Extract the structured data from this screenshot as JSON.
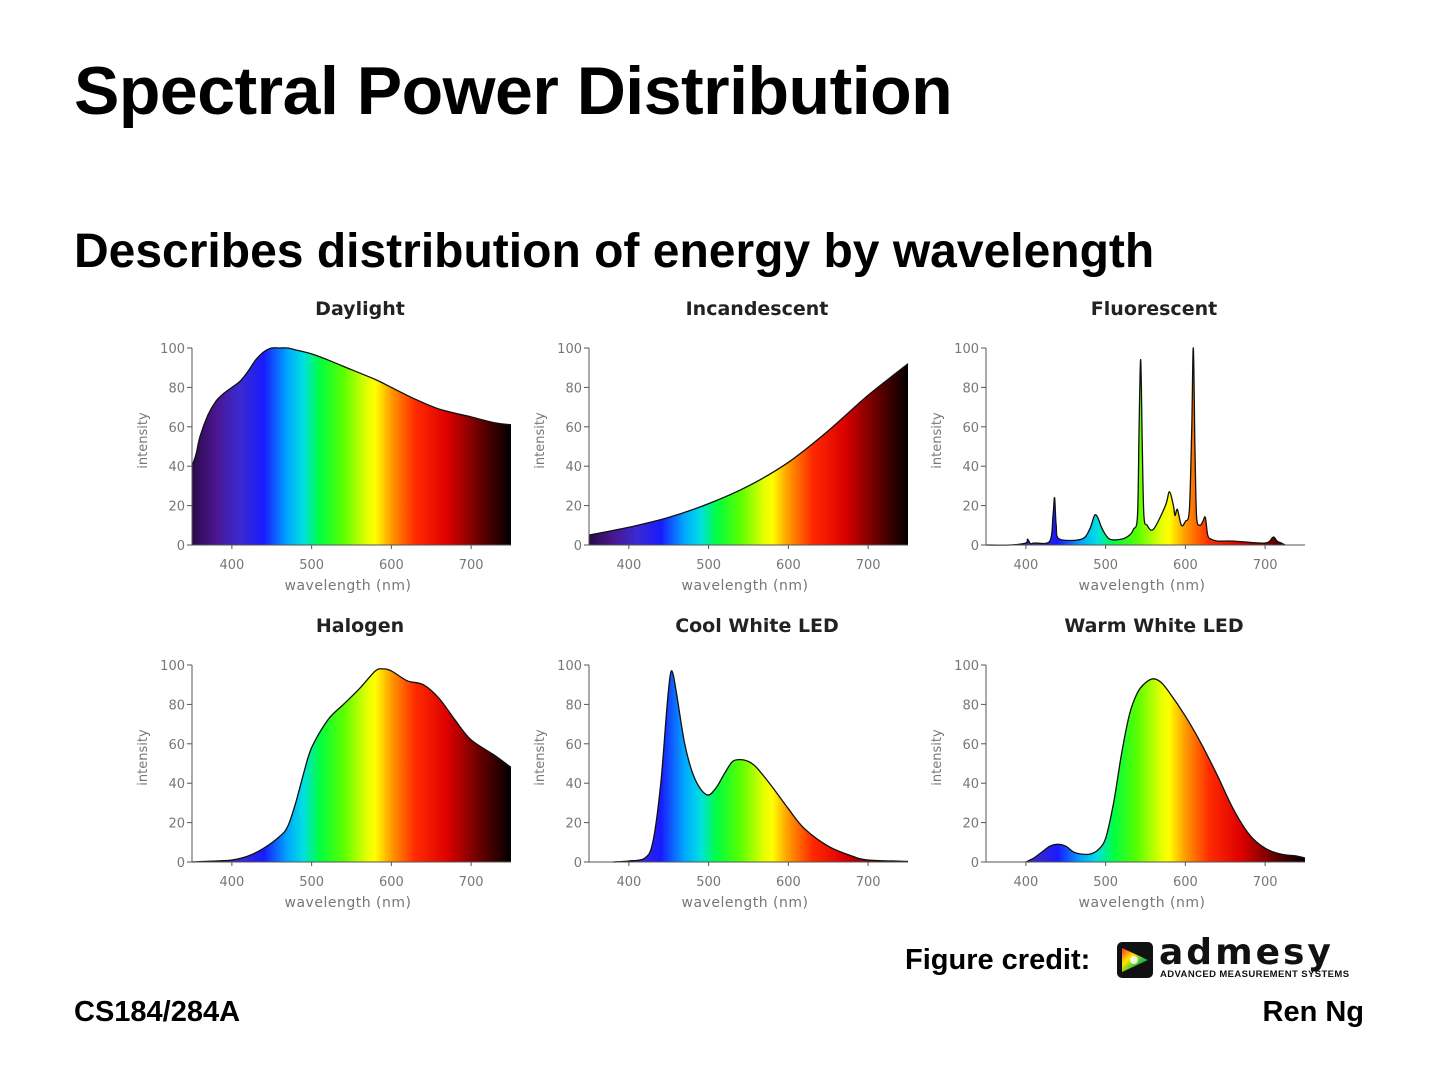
{
  "slide": {
    "title": "Spectral Power Distribution",
    "subtitle": "Describes distribution of energy by wavelength",
    "credit_label": "Figure credit:",
    "logo_word": "admesy",
    "logo_tagline": "ADVANCED MEASUREMENT SYSTEMS",
    "footer_left": "CS184/284A",
    "footer_right": "Ren Ng"
  },
  "chart_data": [
    {
      "type": "area",
      "title": "Daylight",
      "xlabel": "wavelength (nm)",
      "ylabel": "intensity",
      "xlim": [
        350,
        750
      ],
      "ylim": [
        0,
        100
      ],
      "xticks": [
        400,
        500,
        600,
        700
      ],
      "yticks": [
        0,
        20,
        40,
        60,
        80,
        100
      ],
      "x": [
        350,
        355,
        360,
        370,
        380,
        390,
        400,
        410,
        420,
        430,
        440,
        450,
        460,
        470,
        480,
        500,
        520,
        550,
        580,
        600,
        630,
        660,
        700,
        730,
        750
      ],
      "y": [
        40,
        46,
        55,
        66,
        73,
        77,
        80,
        83,
        88,
        94,
        98,
        100,
        100,
        100,
        99,
        97,
        94,
        89,
        84,
        80,
        74,
        69,
        65,
        62,
        61
      ]
    },
    {
      "type": "area",
      "title": "Incandescent",
      "xlabel": "wavelength (nm)",
      "ylabel": "intensity",
      "xlim": [
        350,
        750
      ],
      "ylim": [
        0,
        100
      ],
      "xticks": [
        400,
        500,
        600,
        700
      ],
      "yticks": [
        0,
        20,
        40,
        60,
        80,
        100
      ],
      "x": [
        350,
        400,
        450,
        500,
        550,
        600,
        650,
        700,
        750
      ],
      "y": [
        5,
        9,
        14,
        21,
        30,
        42,
        58,
        76,
        92
      ]
    },
    {
      "type": "area",
      "title": "Fluorescent",
      "xlabel": "wavelength (nm)",
      "ylabel": "intensity",
      "xlim": [
        350,
        750
      ],
      "ylim": [
        0,
        100
      ],
      "xticks": [
        400,
        500,
        600,
        700
      ],
      "yticks": [
        0,
        20,
        40,
        60,
        80,
        100
      ],
      "x": [
        350,
        380,
        400,
        402,
        405,
        407,
        410,
        430,
        434,
        436,
        438,
        442,
        470,
        480,
        486,
        490,
        496,
        505,
        520,
        530,
        535,
        540,
        542,
        544,
        546,
        548,
        552,
        560,
        575,
        580,
        585,
        587,
        590,
        595,
        600,
        605,
        608,
        610,
        612,
        614,
        618,
        622,
        625,
        628,
        632,
        640,
        660,
        700,
        710,
        715,
        720,
        725
      ],
      "y": [
        0,
        0,
        1,
        3,
        1,
        0.5,
        1,
        2,
        15,
        24,
        10,
        3,
        3,
        8,
        15,
        14,
        8,
        3,
        3,
        5,
        8,
        15,
        60,
        94,
        50,
        15,
        10,
        8,
        20,
        27,
        20,
        15,
        18,
        10,
        12,
        18,
        60,
        100,
        50,
        15,
        10,
        12,
        14,
        5,
        3,
        2,
        2,
        1,
        4,
        2,
        1,
        0
      ]
    },
    {
      "type": "area",
      "title": "Halogen",
      "xlabel": "wavelength (nm)",
      "ylabel": "intensity",
      "xlim": [
        350,
        750
      ],
      "ylim": [
        0,
        100
      ],
      "xticks": [
        400,
        500,
        600,
        700
      ],
      "yticks": [
        0,
        20,
        40,
        60,
        80,
        100
      ],
      "x": [
        350,
        380,
        400,
        420,
        440,
        460,
        470,
        480,
        490,
        500,
        520,
        540,
        560,
        580,
        590,
        600,
        620,
        640,
        660,
        680,
        700,
        730,
        750
      ],
      "y": [
        0,
        0.5,
        1,
        3,
        7,
        13,
        18,
        30,
        45,
        58,
        72,
        80,
        88,
        97,
        98,
        97,
        92,
        90,
        83,
        72,
        62,
        54,
        48
      ]
    },
    {
      "type": "area",
      "title": "Cool White LED",
      "xlabel": "wavelength (nm)",
      "ylabel": "intensity",
      "xlim": [
        350,
        750
      ],
      "ylim": [
        0,
        100
      ],
      "xticks": [
        400,
        500,
        600,
        700
      ],
      "yticks": [
        0,
        20,
        40,
        60,
        80,
        100
      ],
      "x": [
        380,
        400,
        420,
        430,
        440,
        448,
        452,
        455,
        460,
        470,
        480,
        490,
        500,
        510,
        520,
        530,
        540,
        550,
        560,
        580,
        600,
        620,
        650,
        680,
        700,
        750
      ],
      "y": [
        0,
        0.5,
        2,
        10,
        40,
        80,
        95,
        96,
        85,
        60,
        45,
        37,
        34,
        38,
        45,
        51,
        52,
        51,
        48,
        38,
        27,
        17,
        8,
        3,
        1,
        0.3
      ]
    },
    {
      "type": "area",
      "title": "Warm White LED",
      "xlabel": "wavelength (nm)",
      "ylabel": "intensity",
      "xlim": [
        350,
        750
      ],
      "ylim": [
        0,
        100
      ],
      "xticks": [
        400,
        500,
        600,
        700
      ],
      "yticks": [
        0,
        20,
        40,
        60,
        80,
        100
      ],
      "x": [
        400,
        410,
        420,
        430,
        440,
        450,
        460,
        470,
        480,
        490,
        500,
        510,
        520,
        530,
        540,
        550,
        560,
        570,
        580,
        600,
        620,
        640,
        660,
        680,
        700,
        720,
        740,
        750
      ],
      "y": [
        0,
        2,
        5,
        8,
        9,
        8,
        5,
        4,
        4,
        6,
        12,
        30,
        55,
        75,
        86,
        91,
        93,
        91,
        86,
        74,
        60,
        44,
        27,
        14,
        7,
        4,
        3,
        2
      ]
    }
  ]
}
